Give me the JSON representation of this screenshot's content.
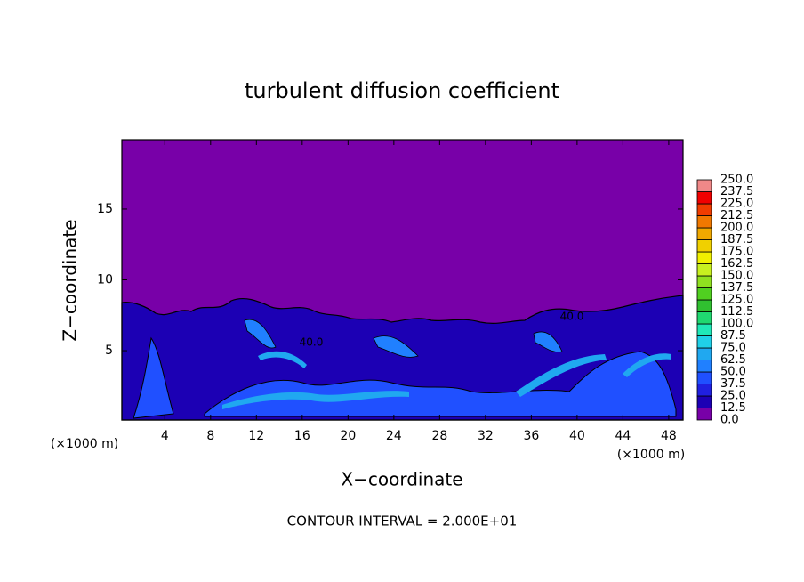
{
  "chart_data": {
    "type": "contour",
    "title": "turbulent diffusion coefficient",
    "xlabel": "X−coordinate",
    "ylabel": "Z−coordinate",
    "xunit": "(×1000 m)",
    "yunit": "(×1000 m)",
    "note": "CONTOUR INTERVAL = 2.000E+01",
    "contour_labels": [
      "40.0",
      "40.0"
    ],
    "xlim": [
      0.25,
      49.25
    ],
    "ylim": [
      0.1,
      19.9
    ],
    "xticks": [
      4,
      8,
      12,
      16,
      20,
      24,
      28,
      32,
      36,
      40,
      44,
      48
    ],
    "yticks": [
      5,
      10,
      15
    ],
    "colorbar": {
      "levels": [
        {
          "value": 0,
          "label": "0.0"
        },
        {
          "value": 12.5,
          "label": "12.5"
        },
        {
          "value": 25,
          "label": "25.0"
        },
        {
          "value": 37.5,
          "label": "37.5"
        },
        {
          "value": 50,
          "label": "50.0"
        },
        {
          "value": 62.5,
          "label": "62.5"
        },
        {
          "value": 75,
          "label": "75.0"
        },
        {
          "value": 87.5,
          "label": "87.5"
        },
        {
          "value": 100,
          "label": "100.0"
        },
        {
          "value": 112.5,
          "label": "112.5"
        },
        {
          "value": 125,
          "label": "125.0"
        },
        {
          "value": 137.5,
          "label": "137.5"
        },
        {
          "value": 150,
          "label": "150.0"
        },
        {
          "value": 162.5,
          "label": "162.5"
        },
        {
          "value": 175,
          "label": "175.0"
        },
        {
          "value": 187.5,
          "label": "187.5"
        },
        {
          "value": 200,
          "label": "200.0"
        },
        {
          "value": 212.5,
          "label": "212.5"
        },
        {
          "value": 225,
          "label": "225.0"
        },
        {
          "value": 237.5,
          "label": "237.5"
        },
        {
          "value": 250,
          "label": "250.0"
        }
      ],
      "colors": [
        "#7800a8",
        "#1c00b4",
        "#2020e0",
        "#2050ff",
        "#2080ff",
        "#20a8f0",
        "#20d0e8",
        "#20e8b8",
        "#20d870",
        "#30c030",
        "#50d020",
        "#90e020",
        "#c8f020",
        "#f0f000",
        "#f0d000",
        "#f0a800",
        "#f07800",
        "#f03c00",
        "#f00000",
        "#f08888"
      ]
    }
  }
}
